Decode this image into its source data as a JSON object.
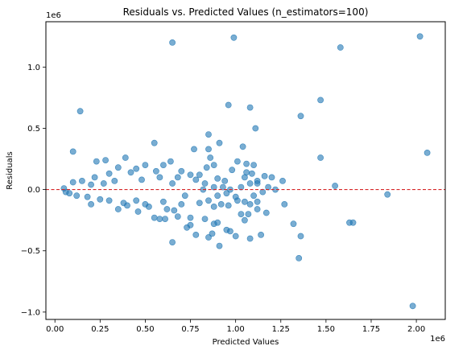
{
  "chart_data": {
    "type": "scatter",
    "title": "Residuals vs. Predicted Values (n_estimators=100)",
    "xlabel": "Predicted Values",
    "ylabel": "Residuals",
    "x_offset_label": "1e6",
    "y_offset_label": "1e6",
    "xlim": [
      -0.05,
      2.16
    ],
    "ylim": [
      -1.06,
      1.37
    ],
    "xticks": [
      0.0,
      0.25,
      0.5,
      0.75,
      1.0,
      1.25,
      1.5,
      1.75,
      2.0
    ],
    "xtick_labels": [
      "0.00",
      "0.25",
      "0.50",
      "0.75",
      "1.00",
      "1.25",
      "1.50",
      "1.75",
      "2.00"
    ],
    "yticks": [
      -1.0,
      -0.5,
      0.0,
      0.5,
      1.0
    ],
    "ytick_labels": [
      "−1.0",
      "−0.5",
      "0.0",
      "0.5",
      "1.0"
    ],
    "grid": false,
    "point_color": "#1f77b4",
    "point_alpha": 0.6,
    "reference_line": {
      "y": 0,
      "color": "#d62728",
      "style": "dashed"
    },
    "points": [
      [
        0.65,
        1.2
      ],
      [
        0.99,
        1.24
      ],
      [
        2.02,
        1.25
      ],
      [
        1.58,
        1.16
      ],
      [
        1.47,
        0.73
      ],
      [
        0.14,
        0.64
      ],
      [
        0.96,
        0.69
      ],
      [
        1.08,
        0.67
      ],
      [
        1.36,
        0.6
      ],
      [
        1.11,
        0.5
      ],
      [
        0.1,
        0.31
      ],
      [
        0.55,
        0.38
      ],
      [
        0.85,
        0.45
      ],
      [
        0.91,
        0.38
      ],
      [
        1.04,
        0.35
      ],
      [
        2.06,
        0.3
      ],
      [
        1.47,
        0.26
      ],
      [
        0.77,
        0.33
      ],
      [
        0.85,
        0.33
      ],
      [
        0.86,
        0.26
      ],
      [
        0.39,
        0.26
      ],
      [
        0.64,
        0.23
      ],
      [
        0.28,
        0.24
      ],
      [
        0.23,
        0.23
      ],
      [
        1.01,
        0.23
      ],
      [
        1.06,
        0.21
      ],
      [
        1.1,
        0.2
      ],
      [
        0.98,
        0.16
      ],
      [
        1.06,
        0.14
      ],
      [
        1.09,
        0.13
      ],
      [
        1.05,
        0.1
      ],
      [
        1.16,
        0.11
      ],
      [
        1.2,
        0.1
      ],
      [
        1.12,
        0.07
      ],
      [
        1.26,
        0.07
      ],
      [
        1.08,
        0.05
      ],
      [
        1.12,
        0.05
      ],
      [
        0.84,
        0.18
      ],
      [
        0.88,
        0.2
      ],
      [
        0.8,
        0.12
      ],
      [
        0.9,
        0.09
      ],
      [
        0.94,
        0.07
      ],
      [
        0.7,
        0.15
      ],
      [
        0.75,
        0.12
      ],
      [
        0.6,
        0.2
      ],
      [
        0.5,
        0.2
      ],
      [
        0.45,
        0.17
      ],
      [
        0.35,
        0.18
      ],
      [
        1.55,
        0.03
      ],
      [
        1.84,
        -0.04
      ],
      [
        1.27,
        -0.12
      ],
      [
        1.08,
        -0.12
      ],
      [
        1.12,
        -0.1
      ],
      [
        1.05,
        -0.1
      ],
      [
        0.96,
        -0.13
      ],
      [
        0.92,
        -0.12
      ],
      [
        0.88,
        -0.14
      ],
      [
        1.01,
        -0.09
      ],
      [
        1.1,
        -0.05
      ],
      [
        1.0,
        -0.06
      ],
      [
        0.55,
        -0.23
      ],
      [
        0.58,
        -0.24
      ],
      [
        0.61,
        -0.24
      ],
      [
        0.68,
        -0.22
      ],
      [
        0.75,
        -0.23
      ],
      [
        0.66,
        -0.17
      ],
      [
        0.83,
        -0.24
      ],
      [
        0.9,
        -0.27
      ],
      [
        0.75,
        -0.29
      ],
      [
        0.73,
        -0.31
      ],
      [
        0.78,
        -0.37
      ],
      [
        0.65,
        -0.43
      ],
      [
        0.85,
        -0.39
      ],
      [
        0.87,
        -0.36
      ],
      [
        0.91,
        -0.46
      ],
      [
        0.95,
        -0.33
      ],
      [
        0.97,
        -0.34
      ],
      [
        0.88,
        -0.28
      ],
      [
        1.0,
        -0.38
      ],
      [
        1.03,
        -0.2
      ],
      [
        1.05,
        -0.25
      ],
      [
        1.07,
        -0.2
      ],
      [
        1.08,
        -0.4
      ],
      [
        1.14,
        -0.37
      ],
      [
        1.12,
        -0.16
      ],
      [
        1.17,
        -0.19
      ],
      [
        1.32,
        -0.28
      ],
      [
        1.35,
        -0.56
      ],
      [
        1.36,
        -0.38
      ],
      [
        1.63,
        -0.27
      ],
      [
        1.65,
        -0.27
      ],
      [
        1.98,
        -0.95
      ],
      [
        0.5,
        -0.12
      ],
      [
        0.4,
        -0.13
      ],
      [
        0.35,
        -0.16
      ],
      [
        0.3,
        -0.09
      ],
      [
        0.2,
        -0.12
      ],
      [
        0.25,
        -0.08
      ],
      [
        0.45,
        -0.09
      ],
      [
        0.6,
        -0.1
      ],
      [
        0.7,
        -0.12
      ],
      [
        0.8,
        -0.11
      ],
      [
        0.85,
        -0.09
      ],
      [
        0.62,
        -0.16
      ],
      [
        0.52,
        -0.14
      ],
      [
        0.46,
        -0.18
      ],
      [
        0.38,
        -0.11
      ],
      [
        0.18,
        -0.06
      ],
      [
        0.12,
        -0.05
      ],
      [
        0.08,
        -0.03
      ],
      [
        0.05,
        0.01
      ],
      [
        0.06,
        -0.02
      ],
      [
        0.1,
        0.06
      ],
      [
        0.15,
        0.07
      ],
      [
        0.22,
        0.1
      ],
      [
        0.3,
        0.13
      ],
      [
        0.42,
        0.14
      ],
      [
        0.56,
        0.15
      ],
      [
        0.68,
        0.1
      ],
      [
        0.78,
        0.08
      ],
      [
        0.83,
        0.05
      ],
      [
        0.93,
        0.02
      ],
      [
        0.97,
        0.0
      ],
      [
        1.18,
        0.02
      ],
      [
        1.22,
        0.0
      ],
      [
        0.95,
        -0.03
      ],
      [
        0.72,
        -0.05
      ],
      [
        0.58,
        0.1
      ],
      [
        0.48,
        0.08
      ],
      [
        0.33,
        0.07
      ],
      [
        0.27,
        0.05
      ],
      [
        0.2,
        0.04
      ],
      [
        0.65,
        0.05
      ],
      [
        0.82,
        0.0
      ],
      [
        0.88,
        0.02
      ],
      [
        0.9,
        -0.05
      ],
      [
        1.03,
        0.02
      ],
      [
        1.15,
        -0.02
      ]
    ]
  }
}
